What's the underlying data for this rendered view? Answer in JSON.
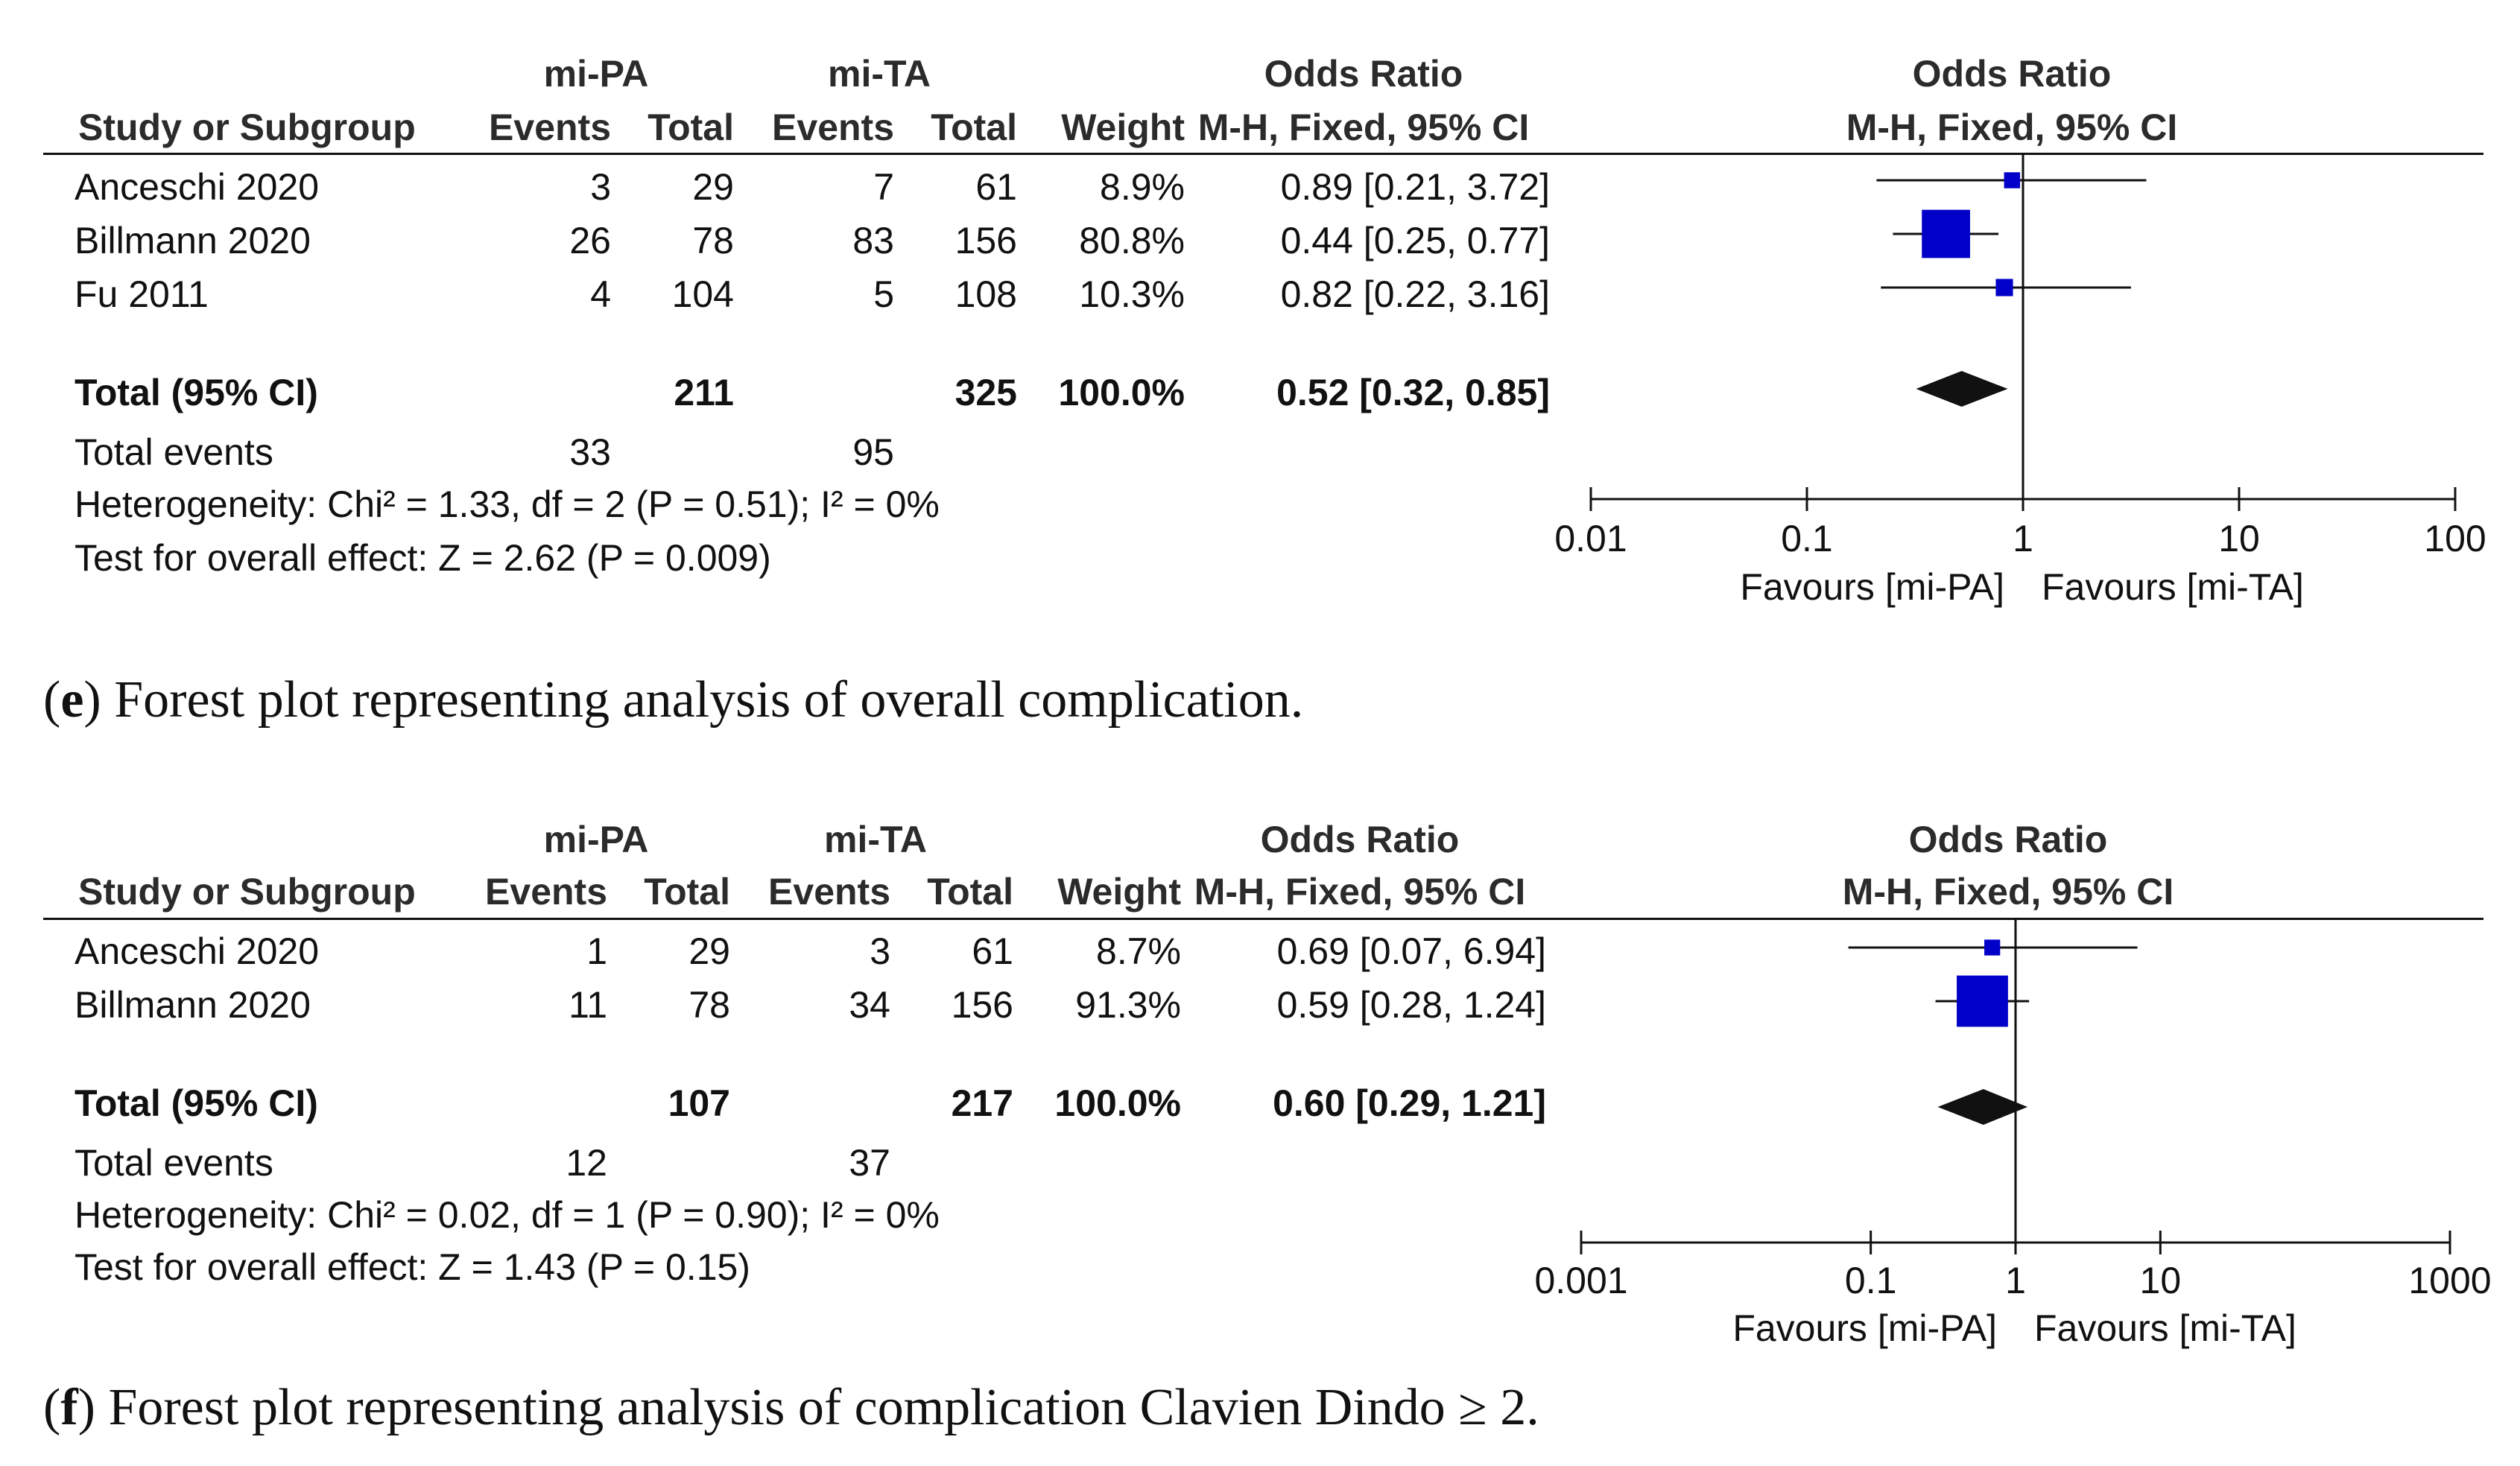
{
  "chart_data": [
    {
      "type": "forest",
      "panel": "e",
      "columns": {
        "group1": "mi-PA",
        "group2": "mi-TA",
        "or_header": "Odds Ratio",
        "study": "Study or Subgroup",
        "events": "Events",
        "total": "Total",
        "weight": "Weight",
        "method": "M-H, Fixed, 95% CI"
      },
      "studies": [
        {
          "name": "Anceschi 2020",
          "e1": "3",
          "t1": "29",
          "e2": "7",
          "t2": "61",
          "weight": "8.9%",
          "ci_text": "0.89 [0.21, 3.72]",
          "or": 0.89,
          "lo": 0.21,
          "hi": 3.72,
          "w": 8.9
        },
        {
          "name": "Billmann 2020",
          "e1": "26",
          "t1": "78",
          "e2": "83",
          "t2": "156",
          "weight": "80.8%",
          "ci_text": "0.44 [0.25, 0.77]",
          "or": 0.44,
          "lo": 0.25,
          "hi": 0.77,
          "w": 80.8
        },
        {
          "name": "Fu 2011",
          "e1": "4",
          "t1": "104",
          "e2": "5",
          "t2": "108",
          "weight": "10.3%",
          "ci_text": "0.82 [0.22, 3.16]",
          "or": 0.82,
          "lo": 0.22,
          "hi": 3.16,
          "w": 10.3
        }
      ],
      "total": {
        "name": "Total (95% CI)",
        "t1": "211",
        "t2": "325",
        "weight": "100.0%",
        "ci_text": "0.52 [0.32, 0.85]",
        "or": 0.52,
        "lo": 0.32,
        "hi": 0.85
      },
      "total_events": {
        "label": "Total events",
        "e1": "33",
        "e2": "95"
      },
      "heterogeneity": "Heterogeneity: Chi² = 1.33, df = 2 (P = 0.51); I² = 0%",
      "overall_effect": "Test for overall effect: Z = 2.62 (P = 0.009)",
      "axis": {
        "scale": "log",
        "min": 0.01,
        "max": 100,
        "ticks": [
          0.01,
          0.1,
          1,
          10,
          100
        ],
        "tick_labels": [
          "0.01",
          "0.1",
          "1",
          "10",
          "100"
        ]
      },
      "favours_left": "Favours [mi-PA]",
      "favours_right": "Favours [mi-TA]",
      "caption_letter": "e",
      "caption_text": " Forest plot representing analysis of overall complication."
    },
    {
      "type": "forest",
      "panel": "f",
      "columns": {
        "group1": "mi-PA",
        "group2": "mi-TA",
        "or_header": "Odds Ratio",
        "study": "Study or Subgroup",
        "events": "Events",
        "total": "Total",
        "weight": "Weight",
        "method": "M-H, Fixed, 95% CI"
      },
      "studies": [
        {
          "name": "Anceschi 2020",
          "e1": "1",
          "t1": "29",
          "e2": "3",
          "t2": "61",
          "weight": "8.7%",
          "ci_text": "0.69 [0.07, 6.94]",
          "or": 0.69,
          "lo": 0.07,
          "hi": 6.94,
          "w": 8.7
        },
        {
          "name": "Billmann 2020",
          "e1": "11",
          "t1": "78",
          "e2": "34",
          "t2": "156",
          "weight": "91.3%",
          "ci_text": "0.59 [0.28, 1.24]",
          "or": 0.59,
          "lo": 0.28,
          "hi": 1.24,
          "w": 91.3
        }
      ],
      "total": {
        "name": "Total (95% CI)",
        "t1": "107",
        "t2": "217",
        "weight": "100.0%",
        "ci_text": "0.60 [0.29, 1.21]",
        "or": 0.6,
        "lo": 0.29,
        "hi": 1.21
      },
      "total_events": {
        "label": "Total events",
        "e1": "12",
        "e2": "37"
      },
      "heterogeneity": "Heterogeneity: Chi² = 0.02, df = 1 (P = 0.90); I² = 0%",
      "overall_effect": "Test for overall effect: Z = 1.43 (P = 0.15)",
      "axis": {
        "scale": "log",
        "min": 0.001,
        "max": 1000,
        "ticks": [
          0.001,
          0.1,
          1,
          10,
          1000
        ],
        "tick_labels": [
          "0.001",
          "0.1",
          "1",
          "10",
          "1000"
        ]
      },
      "favours_left": "Favours [mi-PA]",
      "favours_right": "Favours [mi-TA]",
      "caption_letter": "f",
      "caption_text": " Forest plot representing analysis of complication Clavien Dindo ≥ 2."
    }
  ],
  "colors": {
    "marker": "#0000c8",
    "ink": "#111111",
    "header": "#2b2b2b"
  }
}
